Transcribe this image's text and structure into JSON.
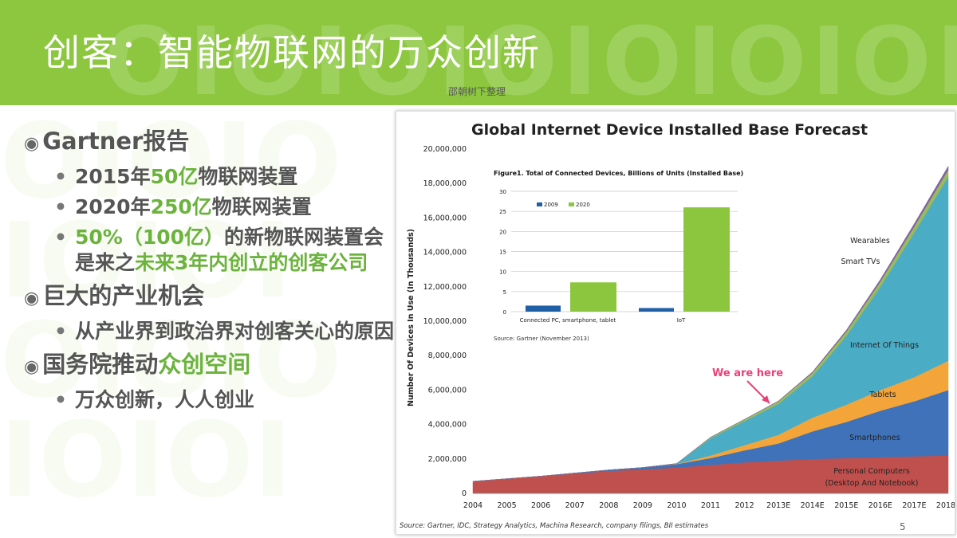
{
  "slide": {
    "title": "创客：智能物联网的万众创新",
    "subtitle": "邵朝树下整理",
    "page_number": "5"
  },
  "colors": {
    "header": "#8cc73f",
    "highlight": "#6cb33e"
  },
  "bullets": {
    "b1": "Gartner报告",
    "b1a_pre": "2015年",
    "b1a_hl": "50亿",
    "b1a_post": "物联网装置",
    "b1b_pre": "2020年",
    "b1b_hl": "250亿",
    "b1b_post": "物联网装置",
    "b1c_hl1": "50%（100亿）",
    "b1c_mid": "的新物联网装置会是来之",
    "b1c_hl2": "未来3年内创立的创客公司",
    "b2": "巨大的产业机会",
    "b2a": "从产业界到政治界对创客关心的原因",
    "b3_pre": "国务院推动",
    "b3_hl": "众创空间",
    "b3a": "万众创新，人人创业"
  },
  "chart_data": [
    {
      "type": "area",
      "title": "Global Internet Device Installed Base Forecast",
      "ylabel": "Number Of Devices In Use (In Thousands)",
      "x": [
        "2004",
        "2005",
        "2006",
        "2007",
        "2008",
        "2009",
        "2010",
        "2011",
        "2012",
        "2013E",
        "2014E",
        "2015E",
        "2016E",
        "2017E",
        "2018E"
      ],
      "y_ticks": [
        "0",
        "2,000,000",
        "4,000,000",
        "6,000,000",
        "8,000,000",
        "10,000,000",
        "12,000,000",
        "14,000,000",
        "16,000,000",
        "18,000,000",
        "20,000,000"
      ],
      "ylim": [
        0,
        20000000
      ],
      "stacked": true,
      "series": [
        {
          "name": "Personal Computers (Desktop And Notebook)",
          "color": "#c0504d",
          "values": [
            700000,
            850000,
            1000000,
            1150000,
            1300000,
            1400000,
            1500000,
            1650000,
            1800000,
            1900000,
            2000000,
            2050000,
            2100000,
            2150000,
            2200000
          ]
        },
        {
          "name": "Smartphones",
          "color": "#3f72b8",
          "values": [
            0,
            0,
            0,
            30000,
            60000,
            100000,
            200000,
            400000,
            700000,
            1000000,
            1600000,
            2100000,
            2700000,
            3200000,
            3800000
          ]
        },
        {
          "name": "Tablets",
          "color": "#f4a53a",
          "values": [
            0,
            0,
            0,
            0,
            0,
            0,
            20000,
            150000,
            300000,
            500000,
            800000,
            1000000,
            1200000,
            1400000,
            1700000
          ]
        },
        {
          "name": "Internet Of Things",
          "color": "#4bacc6",
          "values": [
            0,
            0,
            0,
            0,
            0,
            0,
            10000,
            1000000,
            1400000,
            1800000,
            2400000,
            4000000,
            6000000,
            8400000,
            10700000
          ]
        },
        {
          "name": "Smart TVs",
          "color": "#9bbb59",
          "values": [
            0,
            0,
            0,
            0,
            0,
            0,
            0,
            60000,
            100000,
            150000,
            200000,
            250000,
            300000,
            350000,
            400000
          ]
        },
        {
          "name": "Wearables",
          "color": "#8064a2",
          "values": [
            0,
            0,
            0,
            0,
            0,
            0,
            0,
            0,
            0,
            20000,
            50000,
            80000,
            120000,
            160000,
            200000
          ]
        }
      ],
      "annotation": "We are here",
      "source": "Source: Gartner, IDC, Strategy Analytics, Machina Research, company filings, BII estimates"
    },
    {
      "type": "bar",
      "title": "Figure1. Total of Connected Devices, Billions of Units (Installed Base)",
      "categories": [
        "Connected PC, smartphone, tablet",
        "IoT"
      ],
      "series": [
        {
          "name": "2009",
          "color": "#1f5fa6",
          "values": [
            1.5,
            0.9
          ]
        },
        {
          "name": "2020",
          "color": "#8cc63e",
          "values": [
            7.3,
            26
          ]
        }
      ],
      "y_ticks": [
        "0",
        "5",
        "10",
        "15",
        "20",
        "25",
        "30"
      ],
      "ylim": [
        0,
        30
      ],
      "source": "Source: Gartner (November 2013)"
    }
  ]
}
